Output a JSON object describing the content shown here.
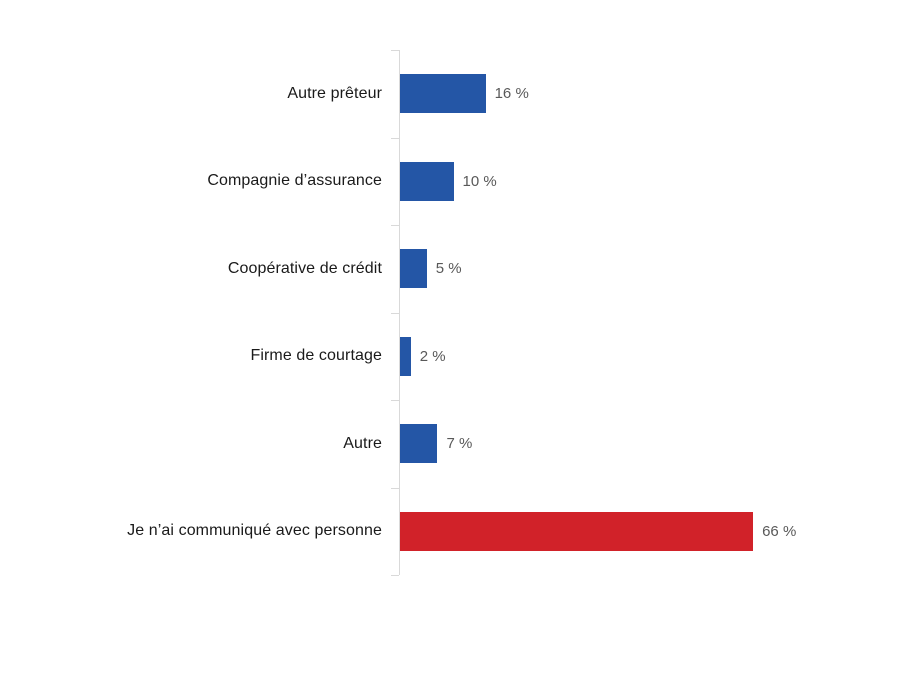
{
  "chart_data": {
    "type": "bar",
    "orientation": "horizontal",
    "title": "",
    "xlabel": "",
    "ylabel": "",
    "grid": false,
    "legend": false,
    "xlim": [
      0,
      100
    ],
    "categories": [
      "Autre prêteur",
      "Compagnie d’assurance",
      "Coopérative de crédit",
      "Firme de courtage",
      "Autre",
      "Je n’ai communiqué avec personne"
    ],
    "values": [
      16,
      10,
      5,
      2,
      7,
      66
    ],
    "value_labels": [
      "16 %",
      "10 %",
      "5 %",
      "2 %",
      "7 %",
      "66 %"
    ],
    "bar_colors": [
      "#2456a6",
      "#2456a6",
      "#2456a6",
      "#2456a6",
      "#2456a6",
      "#d12229"
    ],
    "colors": {
      "bar_blue": "#2456a6",
      "bar_red": "#d12229",
      "axis": "#d9d9d9",
      "category_label": "#1a1a1a",
      "value_label": "#595959",
      "background": "#ffffff"
    }
  }
}
